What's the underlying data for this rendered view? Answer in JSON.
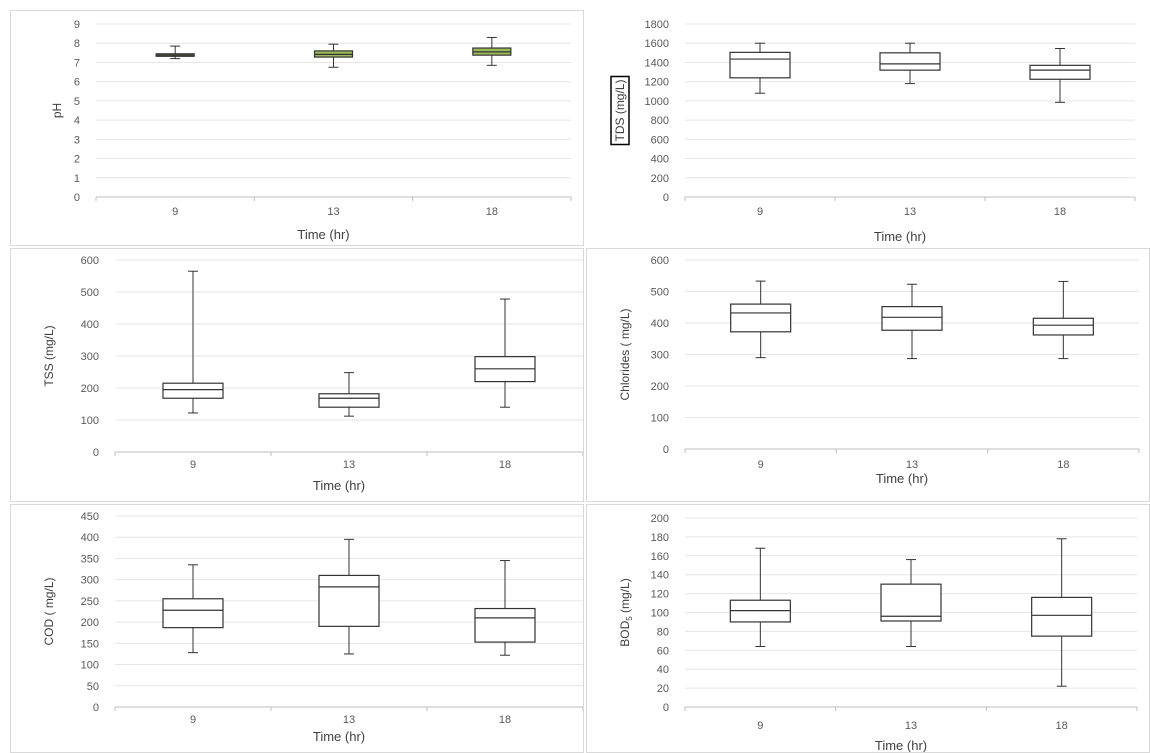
{
  "chart_data": [
    {
      "id": "ph",
      "type": "box",
      "ylabel": "pH",
      "xlabel": "Time (hr)",
      "ylim": [
        0,
        9
      ],
      "yticks": [
        0,
        1,
        2,
        3,
        4,
        5,
        6,
        7,
        8,
        9
      ],
      "box_color": "#9bbb59",
      "categories": [
        "9",
        "13",
        "18"
      ],
      "boxes": [
        {
          "min": 7.2,
          "q1": 7.32,
          "median": 7.38,
          "q3": 7.45,
          "max": 7.85
        },
        {
          "min": 6.75,
          "q1": 7.28,
          "median": 7.42,
          "q3": 7.6,
          "max": 7.95
        },
        {
          "min": 6.85,
          "q1": 7.38,
          "median": 7.55,
          "q3": 7.75,
          "max": 8.3
        }
      ]
    },
    {
      "id": "tds",
      "type": "box",
      "ylabel": "TDS (mg/L)",
      "xlabel": "Time (hr)",
      "ylim": [
        0,
        1800
      ],
      "yticks": [
        0,
        200,
        400,
        600,
        800,
        1000,
        1200,
        1400,
        1600,
        1800
      ],
      "box_color": "#ffffff",
      "categories": [
        "9",
        "13",
        "18"
      ],
      "boxes": [
        {
          "min": 1080,
          "q1": 1240,
          "median": 1435,
          "q3": 1505,
          "max": 1600
        },
        {
          "min": 1180,
          "q1": 1320,
          "median": 1385,
          "q3": 1500,
          "max": 1600
        },
        {
          "min": 985,
          "q1": 1225,
          "median": 1320,
          "q3": 1370,
          "max": 1545
        }
      ]
    },
    {
      "id": "tss",
      "type": "box",
      "ylabel": "TSS (mg/L)",
      "xlabel": "Time (hr)",
      "ylim": [
        0,
        600
      ],
      "yticks": [
        0,
        100,
        200,
        300,
        400,
        500,
        600
      ],
      "box_color": "#ffffff",
      "categories": [
        "9",
        "13",
        "18"
      ],
      "boxes": [
        {
          "min": 122,
          "q1": 168,
          "median": 195,
          "q3": 215,
          "max": 565
        },
        {
          "min": 112,
          "q1": 140,
          "median": 168,
          "q3": 182,
          "max": 248
        },
        {
          "min": 140,
          "q1": 220,
          "median": 260,
          "q3": 298,
          "max": 478
        }
      ]
    },
    {
      "id": "chlorides",
      "type": "box",
      "ylabel": "Chlorides ( mg/L)",
      "xlabel": "Time (hr)",
      "ylim": [
        0,
        600
      ],
      "yticks": [
        0,
        100,
        200,
        300,
        400,
        500,
        600
      ],
      "box_color": "#ffffff",
      "categories": [
        "9",
        "13",
        "18"
      ],
      "boxes": [
        {
          "min": 290,
          "q1": 372,
          "median": 432,
          "q3": 460,
          "max": 533
        },
        {
          "min": 287,
          "q1": 377,
          "median": 418,
          "q3": 452,
          "max": 523
        },
        {
          "min": 287,
          "q1": 362,
          "median": 393,
          "q3": 415,
          "max": 532
        }
      ]
    },
    {
      "id": "cod",
      "type": "box",
      "ylabel": "COD ( mg/L)",
      "xlabel": "Time (hr)",
      "ylim": [
        0,
        450
      ],
      "yticks": [
        0,
        50,
        100,
        150,
        200,
        250,
        300,
        350,
        400,
        450
      ],
      "box_color": "#ffffff",
      "categories": [
        "9",
        "13",
        "18"
      ],
      "boxes": [
        {
          "min": 128,
          "q1": 187,
          "median": 228,
          "q3": 255,
          "max": 335
        },
        {
          "min": 125,
          "q1": 190,
          "median": 283,
          "q3": 310,
          "max": 395
        },
        {
          "min": 122,
          "q1": 153,
          "median": 210,
          "q3": 232,
          "max": 345
        }
      ]
    },
    {
      "id": "bod",
      "type": "box",
      "ylabel": "BOD",
      "ylabel_sub": "5",
      "ylabel_suffix": " (mg/L)",
      "xlabel": "Time (hr)",
      "ylim": [
        0,
        200
      ],
      "yticks": [
        0,
        20,
        40,
        60,
        80,
        100,
        120,
        140,
        160,
        180,
        200
      ],
      "box_color": "#ffffff",
      "categories": [
        "9",
        "13",
        "18"
      ],
      "boxes": [
        {
          "min": 64,
          "q1": 90,
          "median": 102,
          "q3": 113,
          "max": 168
        },
        {
          "min": 64,
          "q1": 91,
          "median": 96,
          "q3": 130,
          "max": 156
        },
        {
          "min": 22,
          "q1": 75,
          "median": 97,
          "q3": 116,
          "max": 178
        }
      ]
    }
  ]
}
